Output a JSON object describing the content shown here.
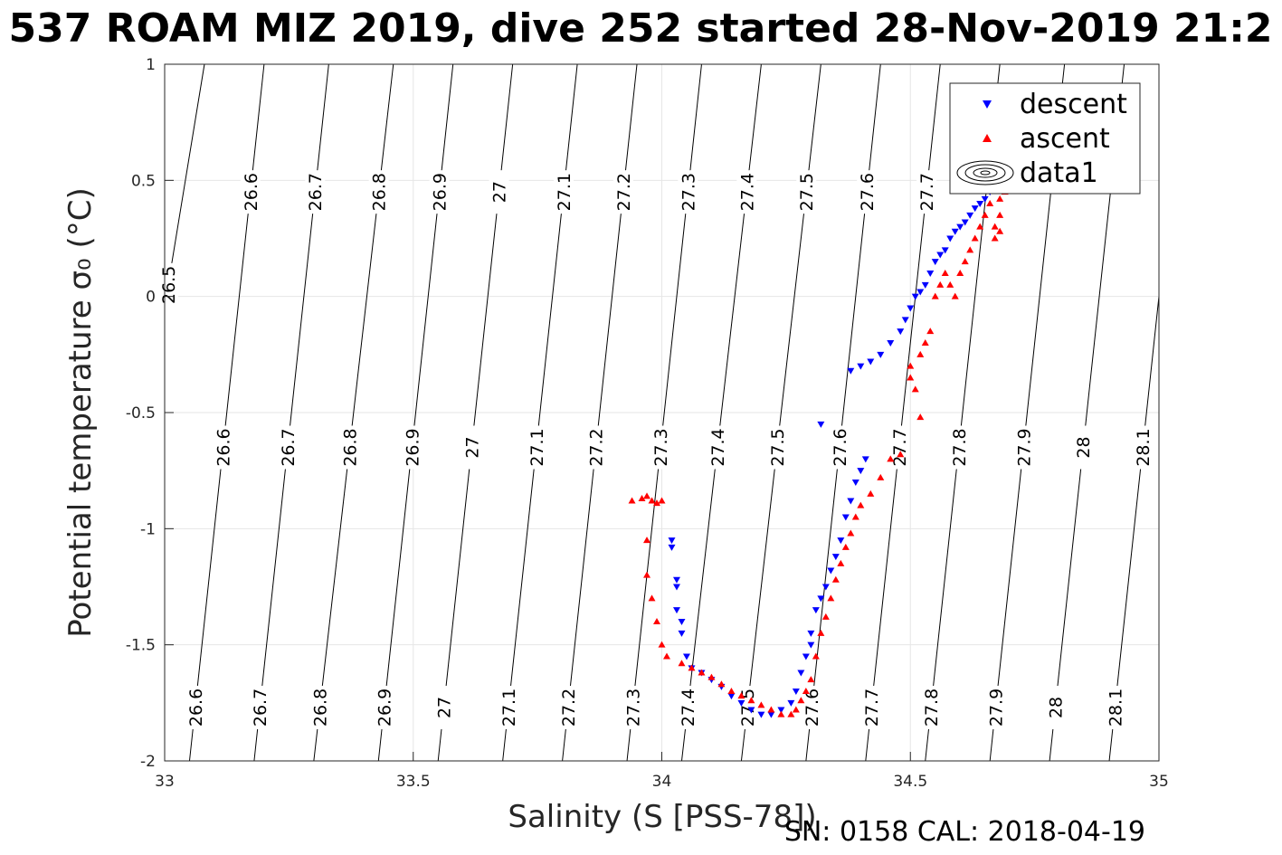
{
  "figure": {
    "title": "537 ROAM MIZ 2019, dive 252 started 28-Nov-2019 21:2",
    "footer": "SN: 0158  CAL: 2018-04-19"
  },
  "chart_data": {
    "type": "scatter",
    "title": "537 ROAM MIZ 2019, dive 252 started 28-Nov-2019 21:2",
    "xlabel": "Salinity (S [PSS-78])",
    "ylabel": "Potential temperature σ₀ (°C)",
    "xlim": [
      33,
      35
    ],
    "ylim": [
      -2,
      1
    ],
    "x_ticks": [
      "33",
      "33.5",
      "34",
      "34.5",
      "35"
    ],
    "y_ticks": [
      "-2",
      "-1.5",
      "-1",
      "-0.5",
      "0",
      "0.5",
      "1"
    ],
    "grid": true,
    "legend_position": "top-right",
    "legend": [
      "descent",
      "ascent",
      "data1"
    ],
    "contours": {
      "name": "data1",
      "levels": [
        "26.5",
        "26.6",
        "26.7",
        "26.8",
        "26.9",
        "27",
        "27.1",
        "27.2",
        "27.3",
        "27.4",
        "27.5",
        "27.6",
        "27.7",
        "27.8",
        "27.9",
        "28",
        "28.1"
      ],
      "salinity_at_minus2": [
        32.85,
        33.05,
        33.18,
        33.3,
        33.43,
        33.55,
        33.68,
        33.8,
        33.93,
        34.04,
        34.16,
        34.29,
        34.41,
        34.53,
        34.66,
        34.78,
        34.9
      ],
      "salinity_at_plus1": [
        33.08,
        33.2,
        33.33,
        33.46,
        33.58,
        33.7,
        33.83,
        33.95,
        34.08,
        34.2,
        34.32,
        34.44,
        34.56,
        34.68,
        34.81,
        34.93,
        35.05
      ],
      "label_rows": [
        {
          "temperature": 0.45,
          "levels": [
            "26.6",
            "26.7",
            "26.8",
            "26.9",
            "27",
            "27.1",
            "27.2",
            "27.3",
            "27.4",
            "27.5",
            "27.6",
            "27.7"
          ]
        },
        {
          "temperature": 0.05,
          "levels": [
            "26.5"
          ]
        },
        {
          "temperature": -0.65,
          "levels": [
            "26.6",
            "26.7",
            "26.8",
            "26.9",
            "27",
            "27.1",
            "27.2",
            "27.3",
            "27.4",
            "27.5",
            "27.6",
            "27.7",
            "27.8",
            "27.9",
            "28",
            "28.1"
          ]
        },
        {
          "temperature": -1.77,
          "levels": [
            "26.6",
            "26.7",
            "26.8",
            "26.9",
            "27",
            "27.1",
            "27.2",
            "27.3",
            "27.4",
            "27.5",
            "27.6",
            "27.7",
            "27.8",
            "27.9",
            "28",
            "28.1"
          ]
        }
      ]
    },
    "series": [
      {
        "name": "descent",
        "marker": "triangle-down",
        "color": "#0000ff",
        "x": [
          34.02,
          34.02,
          34.03,
          34.03,
          34.03,
          34.04,
          34.04,
          34.05,
          34.06,
          34.08,
          34.1,
          34.12,
          34.14,
          34.16,
          34.18,
          34.2,
          34.22,
          34.24,
          34.26,
          34.27,
          34.28,
          34.29,
          34.3,
          34.3,
          34.31,
          34.32,
          34.33,
          34.34,
          34.35,
          34.36,
          34.37,
          34.38,
          34.39,
          34.4,
          34.41,
          34.32,
          34.38,
          34.4,
          34.42,
          34.44,
          34.46,
          34.48,
          34.49,
          34.5,
          34.51,
          34.52,
          34.53,
          34.54,
          34.55,
          34.56,
          34.57,
          34.58,
          34.59,
          34.6,
          34.61,
          34.62,
          34.63,
          34.64,
          34.65,
          34.66
        ],
        "y": [
          -1.05,
          -1.08,
          -1.22,
          -1.25,
          -1.35,
          -1.4,
          -1.45,
          -1.55,
          -1.6,
          -1.62,
          -1.65,
          -1.68,
          -1.72,
          -1.75,
          -1.78,
          -1.8,
          -1.8,
          -1.78,
          -1.75,
          -1.7,
          -1.62,
          -1.55,
          -1.5,
          -1.45,
          -1.35,
          -1.3,
          -1.25,
          -1.18,
          -1.12,
          -1.05,
          -0.95,
          -0.88,
          -0.8,
          -0.75,
          -0.7,
          -0.55,
          -0.32,
          -0.3,
          -0.28,
          -0.25,
          -0.2,
          -0.15,
          -0.1,
          -0.05,
          0.0,
          0.02,
          0.05,
          0.1,
          0.15,
          0.18,
          0.2,
          0.25,
          0.28,
          0.3,
          0.32,
          0.35,
          0.38,
          0.4,
          0.42,
          0.45
        ]
      },
      {
        "name": "ascent",
        "marker": "triangle-up",
        "color": "#ff0000",
        "x": [
          33.94,
          33.96,
          33.97,
          33.98,
          33.99,
          34.0,
          33.97,
          33.97,
          33.98,
          33.99,
          34.0,
          34.01,
          34.04,
          34.06,
          34.08,
          34.1,
          34.12,
          34.14,
          34.16,
          34.18,
          34.2,
          34.22,
          34.24,
          34.26,
          34.27,
          34.28,
          34.29,
          34.3,
          34.31,
          34.32,
          34.33,
          34.34,
          34.35,
          34.36,
          34.37,
          34.38,
          34.39,
          34.4,
          34.42,
          34.44,
          34.46,
          34.48,
          34.5,
          34.52,
          34.53,
          34.54,
          34.52,
          34.51,
          34.5,
          34.55,
          34.56,
          34.57,
          34.58,
          34.59,
          34.6,
          34.61,
          34.62,
          34.63,
          34.64,
          34.65,
          34.66,
          34.67,
          34.67,
          34.68,
          34.68,
          34.68,
          34.69,
          34.69
        ],
        "y": [
          -0.88,
          -0.87,
          -0.86,
          -0.88,
          -0.89,
          -0.88,
          -1.05,
          -1.2,
          -1.3,
          -1.4,
          -1.5,
          -1.55,
          -1.58,
          -1.6,
          -1.62,
          -1.64,
          -1.67,
          -1.7,
          -1.72,
          -1.74,
          -1.76,
          -1.78,
          -1.8,
          -1.8,
          -1.78,
          -1.74,
          -1.7,
          -1.65,
          -1.55,
          -1.45,
          -1.38,
          -1.3,
          -1.22,
          -1.15,
          -1.08,
          -1.02,
          -0.95,
          -0.9,
          -0.85,
          -0.78,
          -0.7,
          -0.68,
          -0.3,
          -0.25,
          -0.2,
          -0.15,
          -0.52,
          -0.4,
          -0.35,
          0.0,
          0.05,
          0.1,
          0.05,
          0.0,
          0.1,
          0.15,
          0.2,
          0.25,
          0.3,
          0.35,
          0.4,
          0.3,
          0.25,
          0.28,
          0.35,
          0.42,
          0.45,
          0.48
        ]
      }
    ]
  }
}
